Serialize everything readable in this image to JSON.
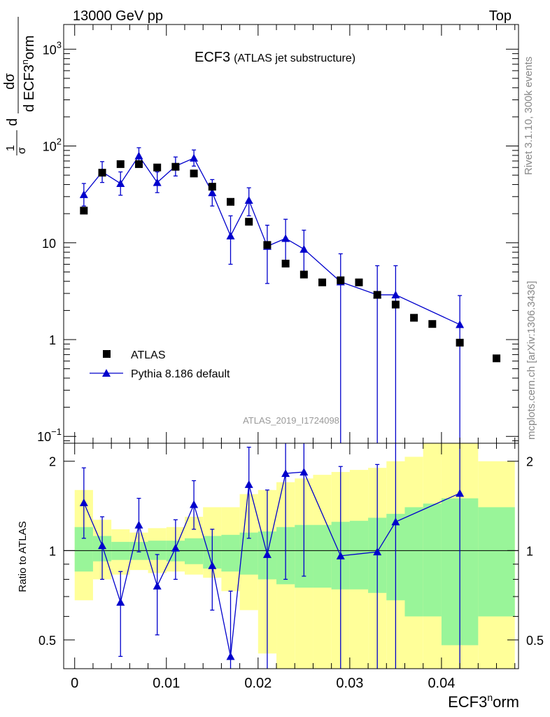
{
  "header": {
    "left": "13000 GeV pp",
    "right": "Top"
  },
  "side": {
    "rivet": "Rivet 3.1.10,  300k events",
    "mcplots": "mcplots.cern.ch [arXiv:1306.3436]"
  },
  "chart_data": {
    "type": "scatter",
    "title": "ECF3",
    "subtitle": "(ATLAS jet substructure)",
    "analysis_id": "ATLAS_2019_I1724098",
    "xlabel": "ECF3^norm",
    "xlabel_parts": {
      "base": "ECF3",
      "sup": "n",
      "rest": "orm"
    },
    "ylabel_parts": {
      "one": "1",
      "sigma": "σ",
      "dsigma": "dσ",
      "d": "d",
      "ecf": "d ECF3",
      "sup": "n",
      "orm": "orm"
    },
    "xlim": [
      -0.0012,
      0.0484
    ],
    "main_ylim": [
      0.085,
      1800
    ],
    "ratio_ylim": [
      0.4,
      2.3
    ],
    "x_ticks": [
      {
        "v": 0,
        "label": "0"
      },
      {
        "v": 0.01,
        "label": "0.01"
      },
      {
        "v": 0.02,
        "label": "0.02"
      },
      {
        "v": 0.03,
        "label": "0.03"
      },
      {
        "v": 0.04,
        "label": "0.04"
      }
    ],
    "main_y_ticks": [
      {
        "v": 0.1,
        "label": "10",
        "exp": "−1"
      },
      {
        "v": 1,
        "label": "1",
        "exp": ""
      },
      {
        "v": 10,
        "label": "10",
        "exp": ""
      },
      {
        "v": 100,
        "label": "10",
        "exp": "2"
      },
      {
        "v": 1000,
        "label": "10",
        "exp": "3"
      }
    ],
    "ratio_ylabel": "Ratio to ATLAS",
    "ratio_y_ticks": [
      {
        "v": 0.5,
        "label": "0.5"
      },
      {
        "v": 1,
        "label": "1"
      },
      {
        "v": 2,
        "label": "2"
      }
    ],
    "legend": {
      "data": "ATLAS",
      "mc": "Pythia 8.186 default",
      "position": "middle-left"
    },
    "series": [
      {
        "name": "ATLAS",
        "x": [
          0.001,
          0.003,
          0.005,
          0.007,
          0.009,
          0.011,
          0.013,
          0.015,
          0.017,
          0.019,
          0.021,
          0.023,
          0.025,
          0.027,
          0.029,
          0.031,
          0.033,
          0.035,
          0.037,
          0.039,
          0.042,
          0.046
        ],
        "y": [
          21.5,
          53,
          65,
          65,
          60,
          61,
          52,
          38,
          26.5,
          16.5,
          9.5,
          6.1,
          4.7,
          3.9,
          4.1,
          3.9,
          2.9,
          2.3,
          1.68,
          1.45,
          0.93,
          0.64
        ]
      },
      {
        "name": "Pythia 8.186 default",
        "x": [
          0.001,
          0.003,
          0.005,
          0.007,
          0.009,
          0.011,
          0.013,
          0.015,
          0.017,
          0.019,
          0.021,
          0.023,
          0.025,
          0.029,
          0.033,
          0.035,
          0.042
        ],
        "y": [
          31.5,
          54,
          41,
          79,
          42,
          62,
          75,
          33,
          11.8,
          27.5,
          9.2,
          11.1,
          8.6,
          3.95,
          2.9,
          2.9,
          1.43
        ],
        "y_low": [
          24,
          42,
          31,
          64,
          33,
          49,
          62,
          24,
          6,
          19,
          3.8,
          6.5,
          4.7,
          0.001,
          0.001,
          0.001,
          0.001
        ],
        "y_high": [
          41,
          69,
          54,
          96,
          54,
          77,
          91,
          45,
          19,
          37,
          15.2,
          17.5,
          13.5,
          7.7,
          5.8,
          5.8,
          2.85
        ],
        "ratio": [
          1.45,
          1.04,
          0.67,
          1.22,
          0.76,
          1.02,
          1.43,
          0.89,
          0.44,
          1.67,
          0.97,
          1.82,
          1.84,
          0.96,
          0.99,
          1.25,
          1.56
        ],
        "ratio_low": [
          1.1,
          0.8,
          0.44,
          0.99,
          0.52,
          0.8,
          1.18,
          0.63,
          0.3,
          1.1,
          0.36,
          0.8,
          0.82,
          0.3,
          0.3,
          0.3,
          0.3
        ],
        "ratio_high": [
          1.9,
          1.3,
          0.85,
          1.5,
          0.97,
          1.27,
          1.72,
          1.18,
          0.73,
          2.23,
          1.6,
          2.5,
          2.5,
          1.92,
          1.95,
          2.5,
          2.5
        ]
      }
    ],
    "ratio_band_edges": [
      0,
      0.002,
      0.004,
      0.006,
      0.008,
      0.01,
      0.012,
      0.014,
      0.016,
      0.018,
      0.02,
      0.022,
      0.024,
      0.026,
      0.028,
      0.03,
      0.032,
      0.034,
      0.036,
      0.038,
      0.04,
      0.044,
      0.048
    ],
    "ratio_band_stat": [
      [
        0.85,
        1.2
      ],
      [
        0.92,
        1.12
      ],
      [
        0.93,
        1.07
      ],
      [
        0.93,
        1.07
      ],
      [
        0.93,
        1.08
      ],
      [
        0.92,
        1.08
      ],
      [
        0.9,
        1.1
      ],
      [
        0.87,
        1.12
      ],
      [
        0.85,
        1.13
      ],
      [
        0.83,
        1.15
      ],
      [
        0.8,
        1.16
      ],
      [
        0.77,
        1.2
      ],
      [
        0.75,
        1.22
      ],
      [
        0.75,
        1.22
      ],
      [
        0.74,
        1.25
      ],
      [
        0.74,
        1.26
      ],
      [
        0.72,
        1.29
      ],
      [
        0.68,
        1.33
      ],
      [
        0.6,
        1.4
      ],
      [
        0.6,
        1.44
      ],
      [
        0.48,
        1.5
      ],
      [
        0.6,
        1.4
      ]
    ],
    "ratio_band_total": [
      [
        0.68,
        1.6
      ],
      [
        0.8,
        1.27
      ],
      [
        0.83,
        1.18
      ],
      [
        0.86,
        1.15
      ],
      [
        0.84,
        1.19
      ],
      [
        0.85,
        1.2
      ],
      [
        0.83,
        1.3
      ],
      [
        0.81,
        1.4
      ],
      [
        0.73,
        1.4
      ],
      [
        0.63,
        1.55
      ],
      [
        0.45,
        1.6
      ],
      [
        0.4,
        1.7
      ],
      [
        0.4,
        1.75
      ],
      [
        0.4,
        1.8
      ],
      [
        0.4,
        1.84
      ],
      [
        0.4,
        1.87
      ],
      [
        0.4,
        1.9
      ],
      [
        0.4,
        2.0
      ],
      [
        0.4,
        2.07
      ],
      [
        0.4,
        2.3
      ],
      [
        0.4,
        2.3
      ],
      [
        0.4,
        2.0
      ]
    ]
  }
}
